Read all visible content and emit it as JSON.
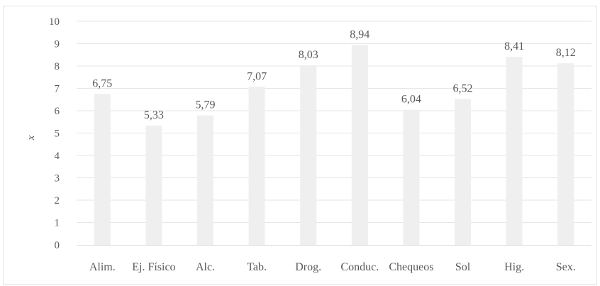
{
  "chart_data": {
    "type": "bar",
    "categories": [
      "Alim.",
      "Ej. Físico",
      "Alc.",
      "Tab.",
      "Drog.",
      "Conduc.",
      "Chequeos",
      "Sol",
      "Hig.",
      "Sex."
    ],
    "values": [
      6.75,
      5.33,
      5.79,
      7.07,
      8.03,
      8.94,
      6.04,
      6.52,
      8.41,
      8.12
    ],
    "value_labels": [
      "6,75",
      "5,33",
      "5,79",
      "7,07",
      "8,03",
      "8,94",
      "6,04",
      "6,52",
      "8,41",
      "8,12"
    ],
    "ylabel": "x",
    "ylim": [
      0,
      10
    ],
    "yticks": [
      "0",
      "1",
      "2",
      "3",
      "4",
      "5",
      "6",
      "7",
      "8",
      "9",
      "10"
    ],
    "grid": true,
    "bar_color": "#efefef",
    "grid_color": "#e6e6e6",
    "text_color": "#595959"
  }
}
